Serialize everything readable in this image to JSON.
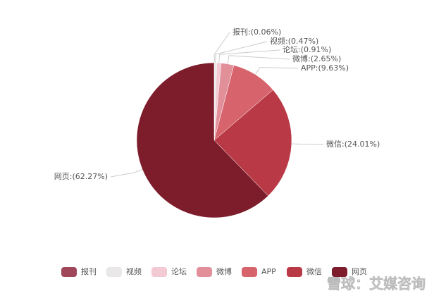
{
  "chart_data": {
    "type": "pie",
    "categories": [
      "报刊",
      "视频",
      "论坛",
      "微博",
      "APP",
      "微信",
      "网页"
    ],
    "values": [
      0.06,
      0.47,
      0.91,
      2.65,
      9.63,
      24.01,
      62.27
    ],
    "value_labels": [
      "报刊:(0.06%)",
      "视频:(0.47%)",
      "论坛:(0.91%)",
      "微博:(2.65%)",
      "APP:(9.63%)",
      "微信:(24.01%)",
      "网页:(62.27%)"
    ],
    "colors": [
      "#a0475b",
      "#e9e7e7",
      "#f3c9d3",
      "#e1909a",
      "#d7646c",
      "#b93a46",
      "#7d1c2a"
    ],
    "legend": "bottom"
  },
  "watermark": "雪球：艾媒咨询"
}
